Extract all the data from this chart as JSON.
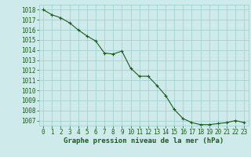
{
  "x": [
    0,
    1,
    2,
    3,
    4,
    5,
    6,
    7,
    8,
    9,
    10,
    11,
    12,
    13,
    14,
    15,
    16,
    17,
    18,
    19,
    20,
    21,
    22,
    23
  ],
  "y": [
    1018.0,
    1017.5,
    1017.2,
    1016.7,
    1016.0,
    1015.4,
    1014.9,
    1013.7,
    1013.6,
    1013.9,
    1012.2,
    1011.4,
    1011.4,
    1010.5,
    1009.5,
    1008.1,
    1007.2,
    1006.8,
    1006.6,
    1006.6,
    1006.7,
    1006.8,
    1007.0,
    1006.8
  ],
  "ylim": [
    1006.5,
    1018.5
  ],
  "yticks": [
    1007,
    1008,
    1009,
    1010,
    1011,
    1012,
    1013,
    1014,
    1015,
    1016,
    1017,
    1018
  ],
  "xticks": [
    0,
    1,
    2,
    3,
    4,
    5,
    6,
    7,
    8,
    9,
    10,
    11,
    12,
    13,
    14,
    15,
    16,
    17,
    18,
    19,
    20,
    21,
    22,
    23
  ],
  "xlabel": "Graphe pression niveau de la mer (hPa)",
  "line_color": "#1a5c1a",
  "marker": "+",
  "marker_size": 3.5,
  "marker_color": "#1a5c1a",
  "bg_color": "#ceeaea",
  "grid_color": "#9ecece",
  "tick_label_color": "#1a5c1a",
  "xlabel_color": "#1a5c1a",
  "xlabel_fontsize": 6.5,
  "tick_fontsize": 5.5,
  "linewidth": 0.8
}
